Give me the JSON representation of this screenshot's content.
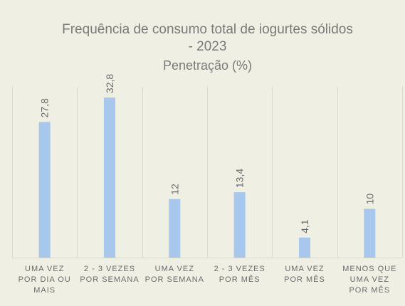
{
  "chart_data": {
    "type": "bar",
    "title": "Frequência de consumo total de iogurtes sólidos",
    "title_line2": "- 2023",
    "subtitle": "Penetração (%)",
    "categories": [
      [
        "UMA VEZ",
        "POR DIA OU",
        "MAIS"
      ],
      [
        "2 - 3 VEZES",
        "POR SEMANA"
      ],
      [
        "UMA VEZ",
        "POR SEMANA"
      ],
      [
        "2 - 3 VEZES",
        "POR MÊS"
      ],
      [
        "UMA VEZ",
        "POR MÊS"
      ],
      [
        "MENOS QUE",
        "UMA VEZ",
        "POR MÊS"
      ]
    ],
    "values": [
      27.8,
      32.8,
      12,
      13.4,
      4.1,
      10
    ],
    "data_labels": [
      "27,8",
      "32,8",
      "12",
      "13,4",
      "4,1",
      "10"
    ],
    "ylim": [
      0,
      35
    ],
    "grid": "vertical separators",
    "bar_color": "#a7c8ec",
    "grid_color": "#d9d9ce"
  }
}
